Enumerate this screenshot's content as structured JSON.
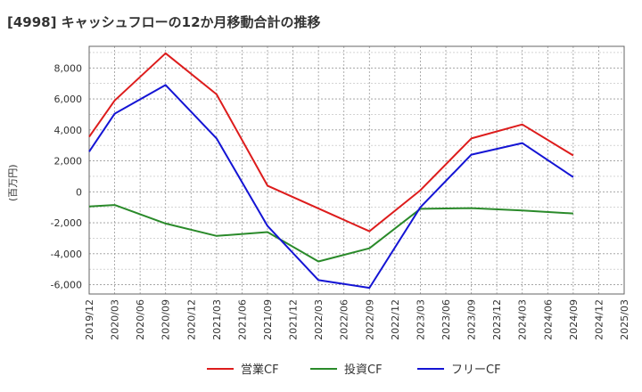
{
  "chart_data": {
    "type": "line",
    "title": "[4998]  キャッシュフローの12か月移動合計の推移",
    "ylabel": "(百万円)",
    "xlabel": "",
    "ylim": [
      -6600,
      9400
    ],
    "yticks": [
      8000,
      6000,
      4000,
      2000,
      0,
      -2000,
      -4000,
      -6000
    ],
    "ytick_labels": [
      "8,000",
      "6,000",
      "4,000",
      "2,000",
      "0",
      "-2,000",
      "-4,000",
      "-6,000"
    ],
    "categories": [
      "2019/12",
      "2020/03",
      "2020/06",
      "2020/09",
      "2020/12",
      "2021/03",
      "2021/06",
      "2021/09",
      "2021/12",
      "2022/03",
      "2022/06",
      "2022/09",
      "2022/12",
      "2023/03",
      "2023/06",
      "2023/09",
      "2023/12",
      "2024/03",
      "2024/06",
      "2024/09",
      "2024/12",
      "2025/03"
    ],
    "series": [
      {
        "name": "営業CF",
        "color": "#dd1c1c",
        "x": [
          "2019/12",
          "2020/03",
          "2020/09",
          "2021/03",
          "2021/09",
          "2022/09",
          "2023/03",
          "2023/09",
          "2024/03",
          "2024/09"
        ],
        "values": [
          3550,
          5900,
          8950,
          6300,
          400,
          -2550,
          100,
          3450,
          4350,
          2350
        ]
      },
      {
        "name": "投資CF",
        "color": "#2a8a2a",
        "x": [
          "2019/12",
          "2020/03",
          "2020/09",
          "2021/03",
          "2021/09",
          "2022/03",
          "2022/09",
          "2023/03",
          "2023/09",
          "2024/03",
          "2024/09"
        ],
        "values": [
          -950,
          -850,
          -2050,
          -2850,
          -2600,
          -4500,
          -3650,
          -1100,
          -1050,
          -1200,
          -1400
        ]
      },
      {
        "name": "フリーCF",
        "color": "#1414d4",
        "x": [
          "2019/12",
          "2020/03",
          "2020/09",
          "2021/03",
          "2021/09",
          "2022/03",
          "2022/09",
          "2023/03",
          "2023/09",
          "2024/03",
          "2024/09"
        ],
        "values": [
          2600,
          5050,
          6900,
          3450,
          -2200,
          -5700,
          -6200,
          -1000,
          2400,
          3150,
          950
        ]
      }
    ],
    "legend_position": "bottom",
    "grid": true
  }
}
